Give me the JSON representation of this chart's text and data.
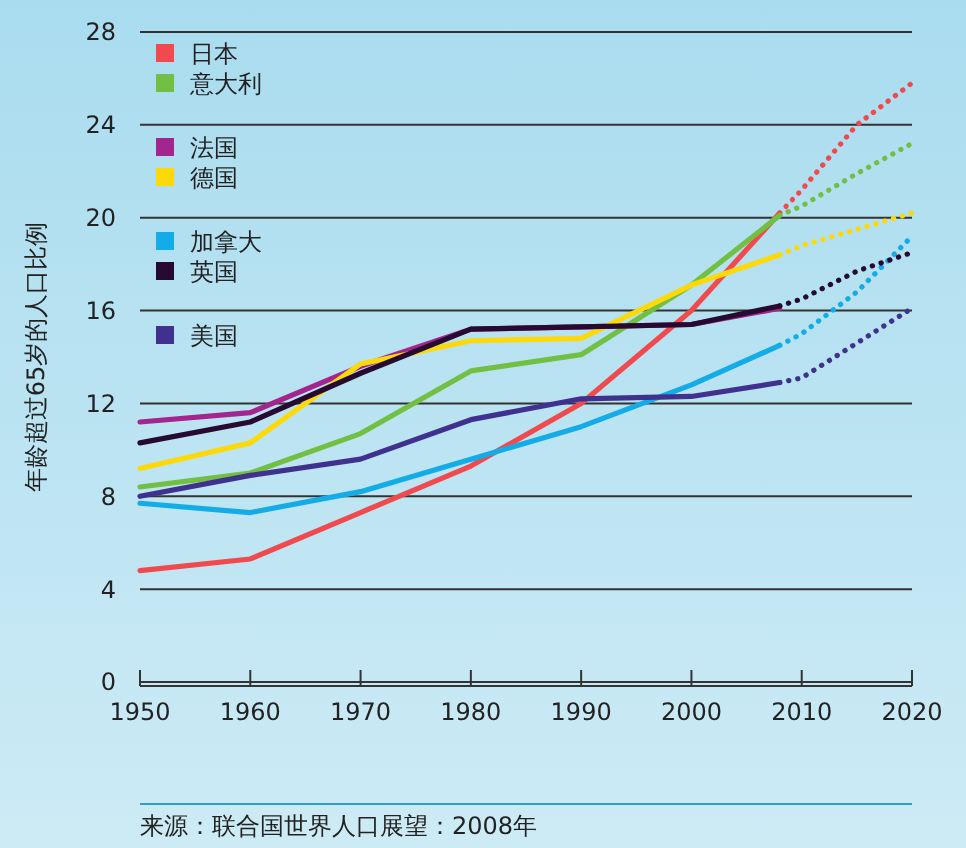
{
  "chart_data": {
    "type": "line",
    "ylabel": "年龄超过65岁的人口比例",
    "x": [
      1950,
      1960,
      1970,
      1980,
      1990,
      2000,
      2008
    ],
    "series": [
      {
        "name": "日本",
        "color": "#f04a4f",
        "values": [
          4.8,
          5.3,
          7.3,
          9.3,
          12.0,
          16.0,
          20.2
        ]
      },
      {
        "name": "意大利",
        "color": "#72c043",
        "values": [
          8.4,
          9.0,
          10.7,
          13.4,
          14.1,
          17.1,
          20.1
        ]
      },
      {
        "name": "法国",
        "color": "#a5258e",
        "values": [
          11.2,
          11.6,
          13.6,
          15.2,
          15.3,
          15.4,
          16.1
        ]
      },
      {
        "name": "德国",
        "color": "#fdd90a",
        "values": [
          9.2,
          10.3,
          13.7,
          14.7,
          14.8,
          17.1,
          18.4
        ]
      },
      {
        "name": "加拿大",
        "color": "#14ace6",
        "values": [
          7.7,
          7.3,
          8.2,
          9.6,
          11.0,
          12.8,
          14.5
        ]
      },
      {
        "name": "英国",
        "color": "#260a30",
        "values": [
          10.3,
          11.2,
          13.3,
          15.2,
          15.3,
          15.4,
          16.2
        ]
      },
      {
        "name": "美国",
        "color": "#40318f",
        "values": [
          8.0,
          8.9,
          9.6,
          11.3,
          12.2,
          12.3,
          12.9
        ]
      },
      {
        "color": "#f04a4f",
        "line_style": "dotted",
        "x": [
          2008,
          2010,
          2015,
          2020
        ],
        "values": [
          20.2,
          21.2,
          24.0,
          25.8
        ]
      },
      {
        "color": "#72c043",
        "line_style": "dotted",
        "x": [
          2008,
          2010,
          2015,
          2020
        ],
        "values": [
          20.1,
          20.5,
          21.9,
          23.2
        ]
      },
      {
        "color": "#fdd90a",
        "line_style": "dotted",
        "x": [
          2008,
          2010,
          2015,
          2020
        ],
        "values": [
          18.4,
          18.8,
          19.5,
          20.2
        ]
      },
      {
        "color": "#14ace6",
        "line_style": "dotted",
        "x": [
          2008,
          2010,
          2015,
          2020
        ],
        "values": [
          14.5,
          15.0,
          16.8,
          19.2
        ]
      },
      {
        "color": "#260a30",
        "line_style": "dotted",
        "x": [
          2008,
          2010,
          2015,
          2020
        ],
        "values": [
          16.2,
          16.5,
          17.7,
          18.5
        ]
      },
      {
        "color": "#40318f",
        "line_style": "dotted",
        "x": [
          2008,
          2010,
          2015,
          2020
        ],
        "values": [
          12.9,
          13.1,
          14.6,
          16.1
        ]
      }
    ],
    "xlim": [
      1950,
      2020
    ],
    "xticks": [
      1950,
      1960,
      1970,
      1980,
      1990,
      2000,
      2010,
      2020
    ],
    "ylim": [
      0,
      28
    ],
    "yticks": [
      0,
      4,
      8,
      12,
      16,
      20,
      24,
      28
    ],
    "grid": "y",
    "legend": "top left",
    "line_style": "solid",
    "marker": "none",
    "annotations": [
      "来源：联合国世界人口展望：2008年"
    ]
  }
}
